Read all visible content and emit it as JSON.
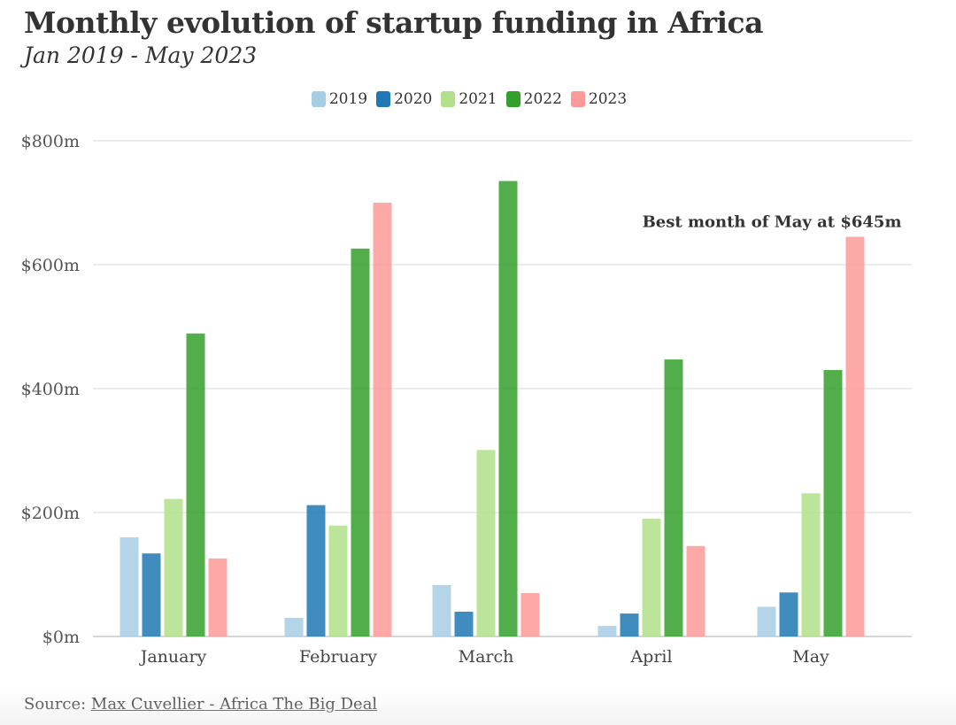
{
  "title": "Monthly evolution of startup funding in Africa",
  "subtitle": "Jan 2019 - May 2023",
  "source": {
    "label": "Source: ",
    "link_text": "Max Cuvellier - Africa The Big Deal"
  },
  "chart_data": {
    "type": "bar",
    "categories": [
      "January",
      "February",
      "March",
      "April",
      "May"
    ],
    "series": [
      {
        "name": "2019",
        "color": "#a6cee3",
        "values": [
          160,
          30,
          83,
          17,
          48
        ]
      },
      {
        "name": "2020",
        "color": "#1f78b4",
        "values": [
          134,
          212,
          40,
          37,
          71
        ]
      },
      {
        "name": "2021",
        "color": "#b2df8a",
        "values": [
          222,
          179,
          301,
          190,
          231
        ]
      },
      {
        "name": "2022",
        "color": "#33a02c",
        "values": [
          489,
          626,
          735,
          447,
          430
        ]
      },
      {
        "name": "2023",
        "color": "#fb9a99",
        "values": [
          126,
          700,
          70,
          146,
          645
        ]
      }
    ],
    "ylim": [
      0,
      800
    ],
    "yticks": [
      0,
      200,
      400,
      600,
      800
    ],
    "ytick_labels": [
      "$0m",
      "$200m",
      "$400m",
      "$600m",
      "$800m"
    ],
    "grid": true,
    "legend_position": "top-center",
    "annotation": {
      "text": "Best month of May at $645m",
      "category": "May",
      "series": "2023",
      "value": 645
    }
  }
}
